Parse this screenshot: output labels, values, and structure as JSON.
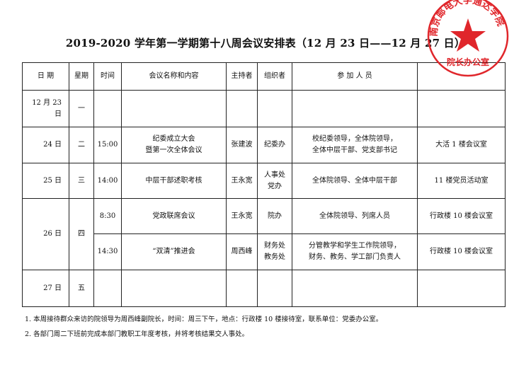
{
  "title": "2019-2020 学年第一学期第十八周会议安排表（12 月 23 日——12 月 27 日）",
  "headers": [
    "日 期",
    "星期",
    "时间",
    "会议名称和内容",
    "主持者",
    "组织者",
    "参 加 人 员",
    ""
  ],
  "rows": [
    {
      "date": "12 月 23 日",
      "weekday": "一",
      "meetings": [
        {
          "time": "",
          "name": "",
          "host": "",
          "organizer": "",
          "attendees": "",
          "location": ""
        }
      ]
    },
    {
      "date": "24 日",
      "weekday": "二",
      "meetings": [
        {
          "time": "15:00",
          "name": "纪委成立大会\n暨第一次全体会议",
          "host": "张建波",
          "organizer": "纪委办",
          "attendees": "校纪委领导，全体院领导，\n全体中层干部、党支部书记",
          "location": "大活 1 楼会议室"
        }
      ]
    },
    {
      "date": "25 日",
      "weekday": "三",
      "meetings": [
        {
          "time": "14:00",
          "name": "中层干部述职考核",
          "host": "王永宽",
          "organizer": "人事处\n党办",
          "attendees": "全体院领导、全体中层干部",
          "location": "11 楼党员活动室"
        }
      ]
    },
    {
      "date": "26 日",
      "weekday": "四",
      "meetings": [
        {
          "time": "8:30",
          "name": "党政联席会议",
          "host": "王永宽",
          "organizer": "院办",
          "attendees": "全体院领导、列席人员",
          "location": "行政楼 10 楼会议室"
        },
        {
          "time": "14:30",
          "name": "“双清”推进会",
          "host": "周西峰",
          "organizer": "财务处\n教务处",
          "attendees": "分管教学和学生工作院领导，\n财务、教务、学工部门负责人",
          "location": "行政楼 10 楼会议室"
        }
      ]
    },
    {
      "date": "27 日",
      "weekday": "五",
      "meetings": [
        {
          "time": "",
          "name": "",
          "host": "",
          "organizer": "",
          "attendees": "",
          "location": ""
        }
      ]
    }
  ],
  "notes": [
    "1. 本周接待群众来访的院领导为周西峰副院长，时间：周三下午，地点：行政楼 10 楼接待室，联系单位：党委办公室。",
    "2. 各部门周二下班前完成本部门教职工年度考核，并将考核结果交人事处。"
  ],
  "stamp": {
    "text": "南京邮电大学通达学院",
    "bottom": "院长办公室",
    "color": "#e0262b"
  }
}
